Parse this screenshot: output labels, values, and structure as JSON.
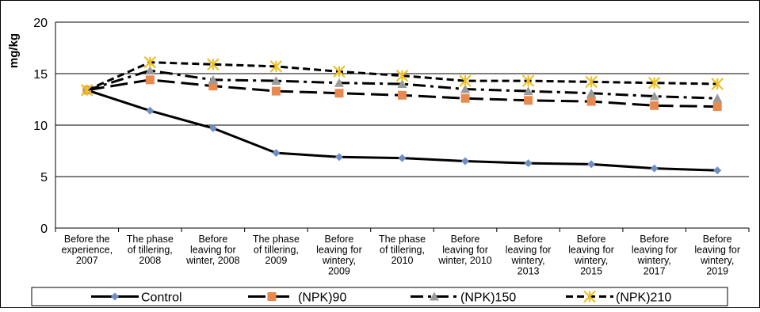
{
  "chart_data": {
    "type": "line",
    "title": "",
    "xlabel": "",
    "ylabel": "mg/kg",
    "ylim": [
      0,
      20
    ],
    "yticks": [
      0,
      5,
      10,
      15,
      20
    ],
    "grid": true,
    "legend_position": "bottom",
    "categories": [
      [
        "Before the",
        "experience,",
        "2007"
      ],
      [
        "The phase",
        "of tillering,",
        "2008"
      ],
      [
        "Before",
        "leaving for",
        "winter, 2008"
      ],
      [
        "The phase",
        "of tillering,",
        "2009"
      ],
      [
        "Before",
        "leaving for",
        "wintery,",
        "2009"
      ],
      [
        "The phase",
        "of tillering,",
        "2010"
      ],
      [
        "Before",
        "leaving for",
        "winter, 2010"
      ],
      [
        "Before",
        "leaving for",
        "wintery,",
        "2013"
      ],
      [
        "Before",
        "leaving for",
        "wintery,",
        "2015"
      ],
      [
        "Before",
        "leaving for",
        "wintery,",
        "2017"
      ],
      [
        "Before",
        "leaving for",
        "wintery,",
        "2019"
      ]
    ],
    "series": [
      {
        "name": "Control",
        "values": [
          13.4,
          11.4,
          9.7,
          7.3,
          6.9,
          6.8,
          6.5,
          6.3,
          6.2,
          5.8,
          5.6
        ],
        "color": "#000000",
        "dash": "solid",
        "marker": "diamond",
        "marker_color": "#6f8fc4"
      },
      {
        "name": "(NPK)90",
        "values": [
          13.4,
          14.4,
          13.8,
          13.3,
          13.1,
          12.9,
          12.6,
          12.4,
          12.3,
          11.9,
          11.8
        ],
        "color": "#000000",
        "dash": "longdash",
        "marker": "square",
        "marker_color": "#e88a4f"
      },
      {
        "name": "(NPK)150",
        "values": [
          13.4,
          15.3,
          14.4,
          14.3,
          14.1,
          14.0,
          13.5,
          13.3,
          13.1,
          12.8,
          12.6
        ],
        "color": "#000000",
        "dash": "dashdot",
        "marker": "triangle",
        "marker_color": "#9a9a9a"
      },
      {
        "name": "(NPK)210",
        "values": [
          13.4,
          16.1,
          15.9,
          15.7,
          15.2,
          14.8,
          14.3,
          14.3,
          14.2,
          14.1,
          14.0
        ],
        "color": "#000000",
        "dash": "dashed",
        "marker": "star",
        "marker_color": "#f0c020"
      }
    ]
  }
}
